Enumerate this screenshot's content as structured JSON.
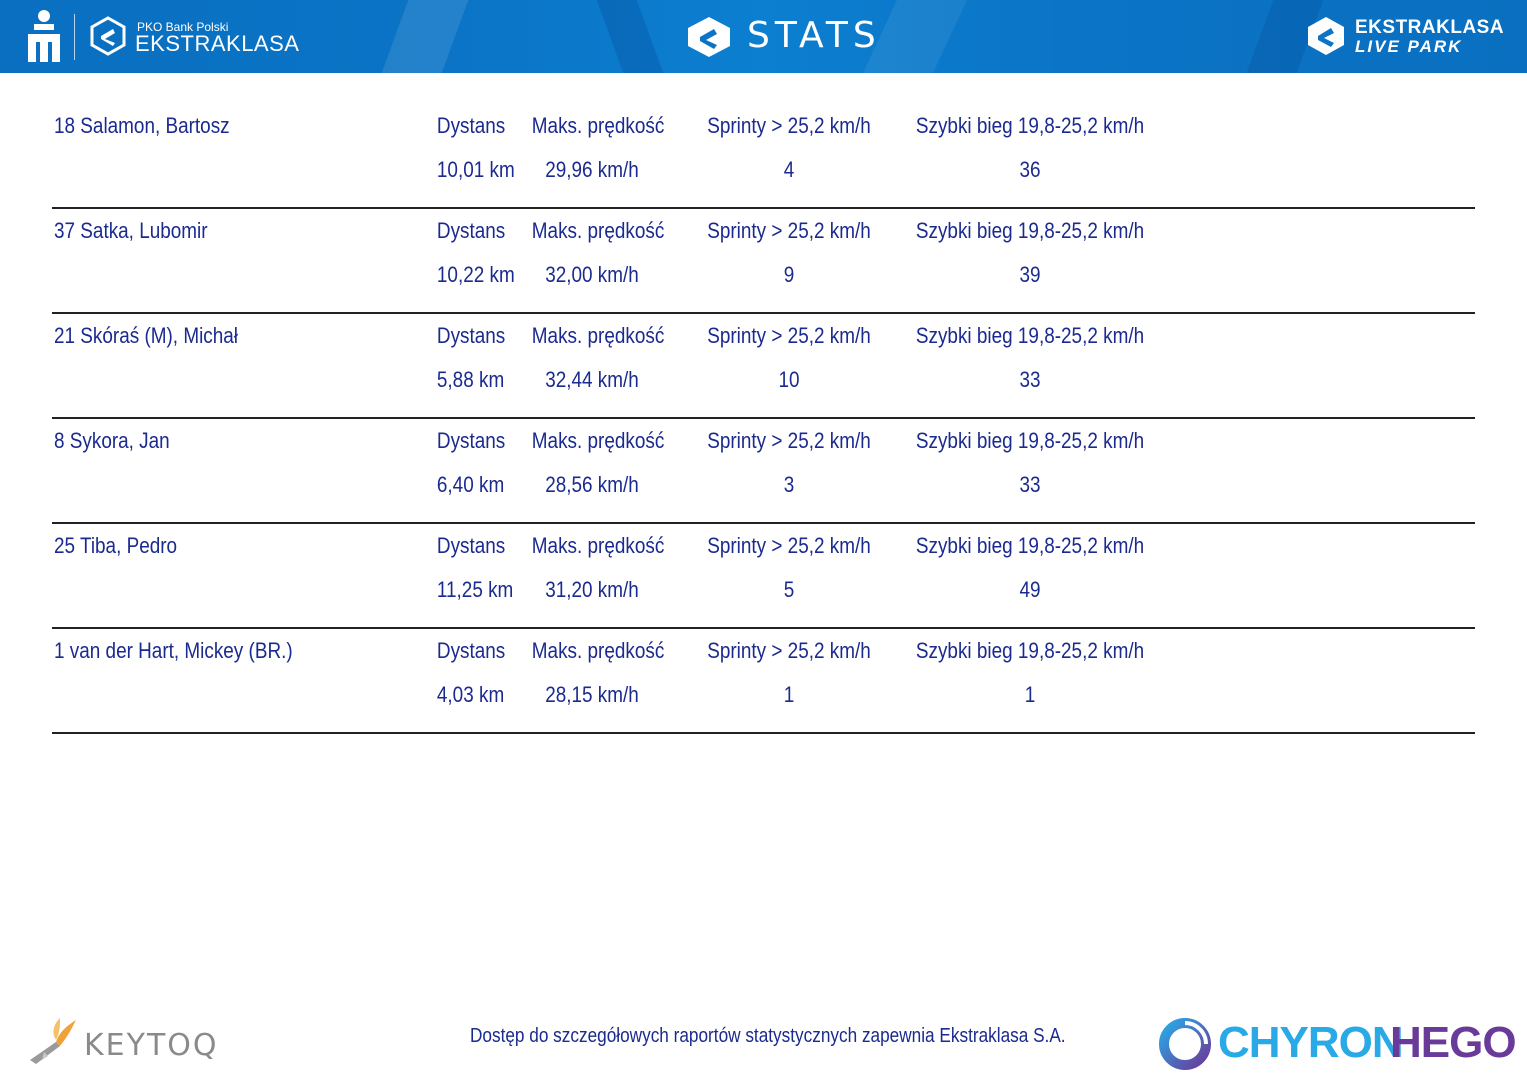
{
  "header": {
    "pko_small": "PKO Bank Polski",
    "ekstraklasa": "EKSTRAKLASA",
    "title": "STATS",
    "live_park_top": "EKSTRAKLASA",
    "live_park_bottom": "LIVE PARK"
  },
  "columns": {
    "dystans": "Dystans",
    "maks": "Maks. prędkość",
    "sprinty": "Sprinty > 25,2 km/h",
    "szybki": "Szybki bieg 19,8-25,2 km/h"
  },
  "players": [
    {
      "name": "18  Salamon, Bartosz",
      "dystans": "10,01 km",
      "maks": "29,96 km/h",
      "sprinty": "4",
      "szybki": "36"
    },
    {
      "name": "37  Satka, Lubomir",
      "dystans": "10,22 km",
      "maks": "32,00 km/h",
      "sprinty": "9",
      "szybki": "39"
    },
    {
      "name": "21  Skóraś (M), Michał",
      "dystans": "5,88 km",
      "maks": "32,44 km/h",
      "sprinty": "10",
      "szybki": "33"
    },
    {
      "name": "8  Sykora, Jan",
      "dystans": "6,40 km",
      "maks": "28,56 km/h",
      "sprinty": "3",
      "szybki": "33"
    },
    {
      "name": "25  Tiba, Pedro",
      "dystans": "11,25 km",
      "maks": "31,20 km/h",
      "sprinty": "5",
      "szybki": "49"
    },
    {
      "name": "1  van der Hart, Mickey (BR.)",
      "dystans": "4,03 km",
      "maks": "28,15 km/h",
      "sprinty": "1",
      "szybki": "1"
    }
  ],
  "footer": {
    "keytoq": "KEYTOQ",
    "note": "Dostęp do szczegółowych raportów statystycznych zapewnia Ekstraklasa S.A.",
    "chyron_a": "CHYRON",
    "chyron_b": "HEGO"
  },
  "colors": {
    "header_blue": "#0b74c6",
    "text_navy": "#1b2a8f",
    "chyron_cyan": "#29a9e6",
    "chyron_purple": "#6a3a9a"
  }
}
